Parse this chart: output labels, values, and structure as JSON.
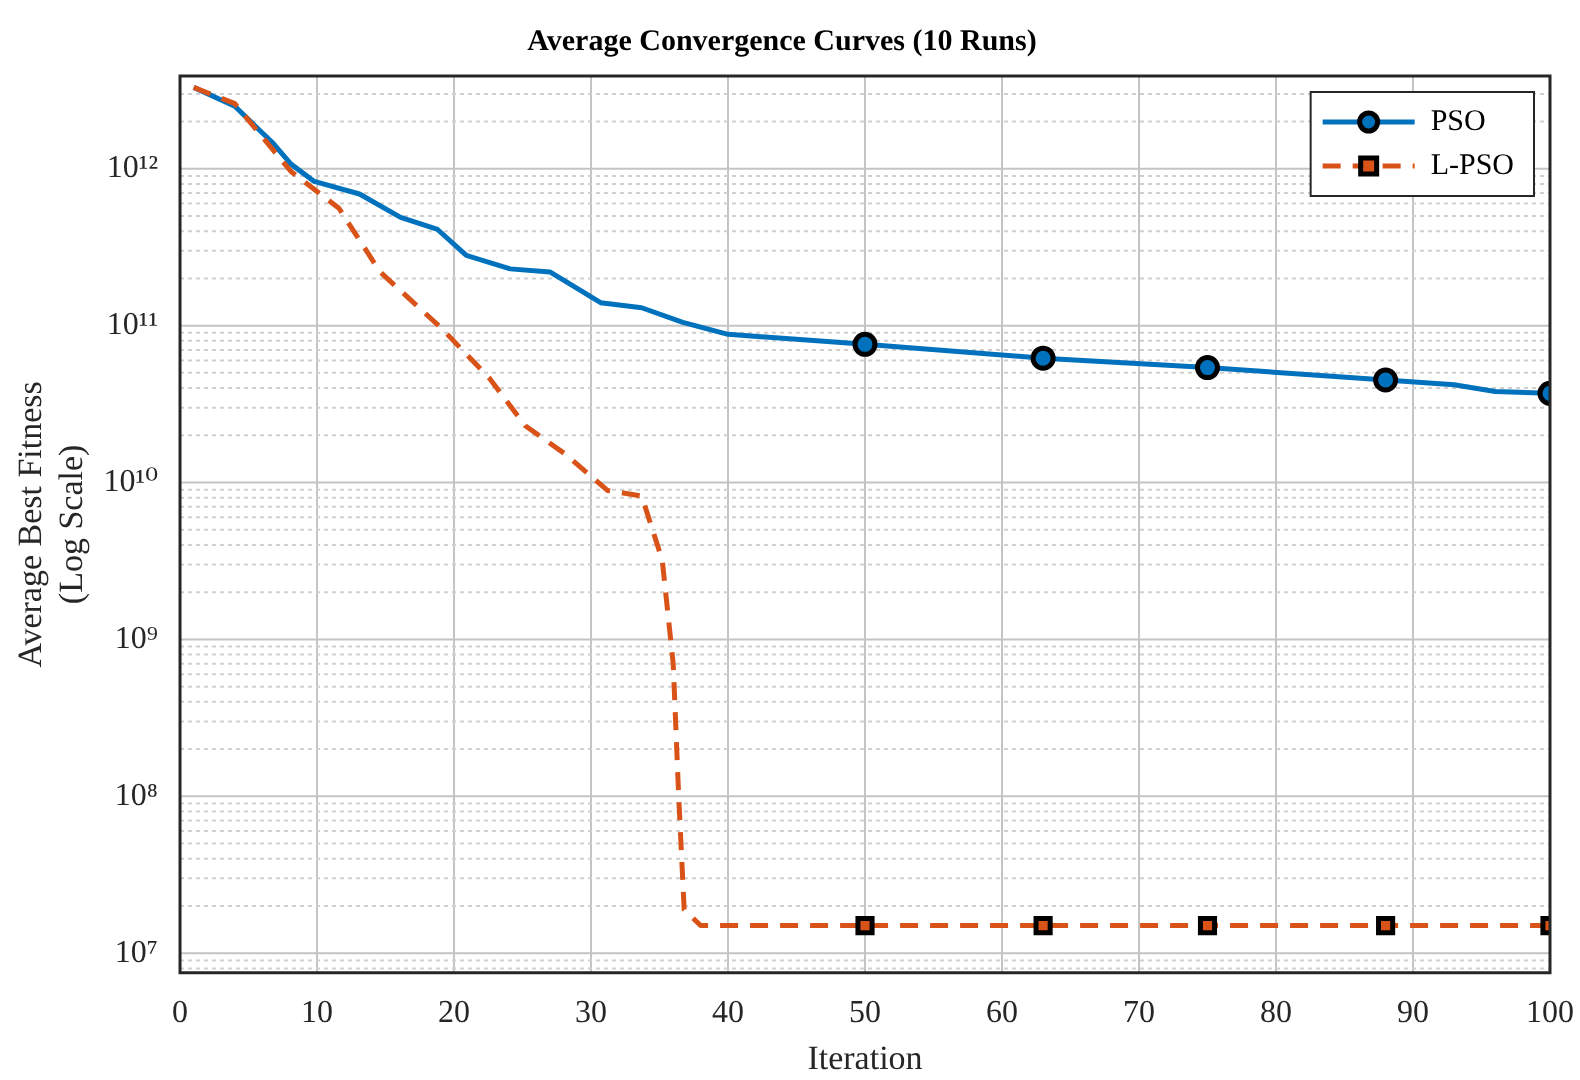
{
  "chart_data": {
    "type": "line",
    "title": "Average Convergence Curves (10 Runs)",
    "xlabel": "Iteration",
    "ylabel": "Average Best Fitness (Log Scale)",
    "log": "y",
    "grid": true,
    "legend": "top right",
    "xlim": [
      0,
      100
    ],
    "xticks": [
      0,
      10,
      20,
      30,
      40,
      50,
      60,
      70,
      80,
      90,
      100
    ],
    "ylim": [
      7500000,
      3900000000000
    ],
    "yticks": [
      {
        "value": 8000000,
        "label": null
      },
      {
        "value": 9000000,
        "label": null
      },
      {
        "value": 10000000,
        "label": "10⁷"
      },
      {
        "value": 20000000,
        "label": null
      },
      {
        "value": 30000000,
        "label": null
      },
      {
        "value": 40000000,
        "label": null
      },
      {
        "value": 50000000,
        "label": null
      },
      {
        "value": 60000000,
        "label": null
      },
      {
        "value": 70000000,
        "label": null
      },
      {
        "value": 80000000,
        "label": null
      },
      {
        "value": 90000000,
        "label": null
      },
      {
        "value": 100000000,
        "label": "10⁸"
      },
      {
        "value": 200000000,
        "label": null
      },
      {
        "value": 300000000,
        "label": null
      },
      {
        "value": 400000000,
        "label": null
      },
      {
        "value": 500000000,
        "label": null
      },
      {
        "value": 600000000,
        "label": null
      },
      {
        "value": 700000000,
        "label": null
      },
      {
        "value": 800000000,
        "label": null
      },
      {
        "value": 900000000,
        "label": null
      },
      {
        "value": 1000000000,
        "label": "10⁹"
      },
      {
        "value": 2000000000,
        "label": null
      },
      {
        "value": 3000000000,
        "label": null
      },
      {
        "value": 4000000000,
        "label": null
      },
      {
        "value": 5000000000,
        "label": null
      },
      {
        "value": 6000000000,
        "label": null
      },
      {
        "value": 7000000000,
        "label": null
      },
      {
        "value": 8000000000,
        "label": null
      },
      {
        "value": 9000000000,
        "label": null
      },
      {
        "value": 10000000000,
        "label": "10¹⁰"
      },
      {
        "value": 20000000000,
        "label": null
      },
      {
        "value": 30000000000,
        "label": null
      },
      {
        "value": 40000000000,
        "label": null
      },
      {
        "value": 50000000000,
        "label": null
      },
      {
        "value": 60000000000,
        "label": null
      },
      {
        "value": 70000000000,
        "label": null
      },
      {
        "value": 80000000000,
        "label": null
      },
      {
        "value": 90000000000,
        "label": null
      },
      {
        "value": 100000000000,
        "label": "10¹¹"
      },
      {
        "value": 200000000000,
        "label": null
      },
      {
        "value": 300000000000,
        "label": null
      },
      {
        "value": 400000000000,
        "label": null
      },
      {
        "value": 500000000000,
        "label": null
      },
      {
        "value": 600000000000,
        "label": null
      },
      {
        "value": 700000000000,
        "label": null
      },
      {
        "value": 800000000000,
        "label": null
      },
      {
        "value": 900000000000,
        "label": null
      },
      {
        "value": 1000000000000,
        "label": "10¹²"
      },
      {
        "value": 2000000000000,
        "label": null
      },
      {
        "value": 3000000000000,
        "label": null
      }
    ],
    "series": [
      {
        "name": "PSO",
        "color": "#0072bd",
        "marker": "none",
        "line_style": "solid",
        "x": [
          1,
          4,
          6.8,
          8.1,
          9.8,
          13.1,
          16.1,
          18.8,
          20.9,
          24.1,
          27,
          30.7,
          33.7,
          36.7,
          40,
          50,
          63,
          75,
          88,
          93,
          96,
          100
        ],
        "values": [
          3300000000000,
          2500000000000,
          1450000000000,
          1070000000000,
          830000000000,
          690000000000,
          490000000000,
          410000000000,
          280000000000,
          230000000000,
          220000000000,
          140000000000,
          130000000000,
          105000000000,
          88000000000,
          76000000000,
          62000000000,
          54000000000,
          45000000000,
          42000000000,
          38000000000,
          37000000000
        ]
      },
      {
        "name": "L-PSO",
        "color": "#d95319",
        "marker": "none",
        "line_style": "dashed",
        "x": [
          1,
          4,
          8.1,
          11.6,
          14.6,
          19.1,
          22.6,
          25.2,
          28.2,
          31.2,
          33.7,
          35.2,
          36,
          36.4,
          36.8,
          38,
          50,
          63,
          75,
          88,
          100
        ],
        "values": [
          3300000000000,
          2600000000000,
          960000000000,
          560000000000,
          220000000000,
          96000000000,
          46000000000,
          23000000000,
          15000000000,
          8900000000,
          8200000000,
          3200000000,
          700000000,
          100000000,
          19000000,
          15000000,
          15000000,
          15000000,
          15000000,
          15000000,
          15000000
        ]
      },
      {
        "type": "scatter",
        "color": "#0072bd",
        "marker": "circle",
        "x": [
          50,
          63,
          75,
          88,
          100
        ],
        "values": [
          76000000000,
          62000000000,
          54000000000,
          45000000000,
          37000000000
        ]
      },
      {
        "type": "scatter",
        "color": "#d95319",
        "marker": "square",
        "x": [
          50,
          63,
          75,
          88,
          100
        ],
        "values": [
          15000000,
          15000000,
          15000000,
          15000000,
          15000000
        ]
      }
    ]
  }
}
